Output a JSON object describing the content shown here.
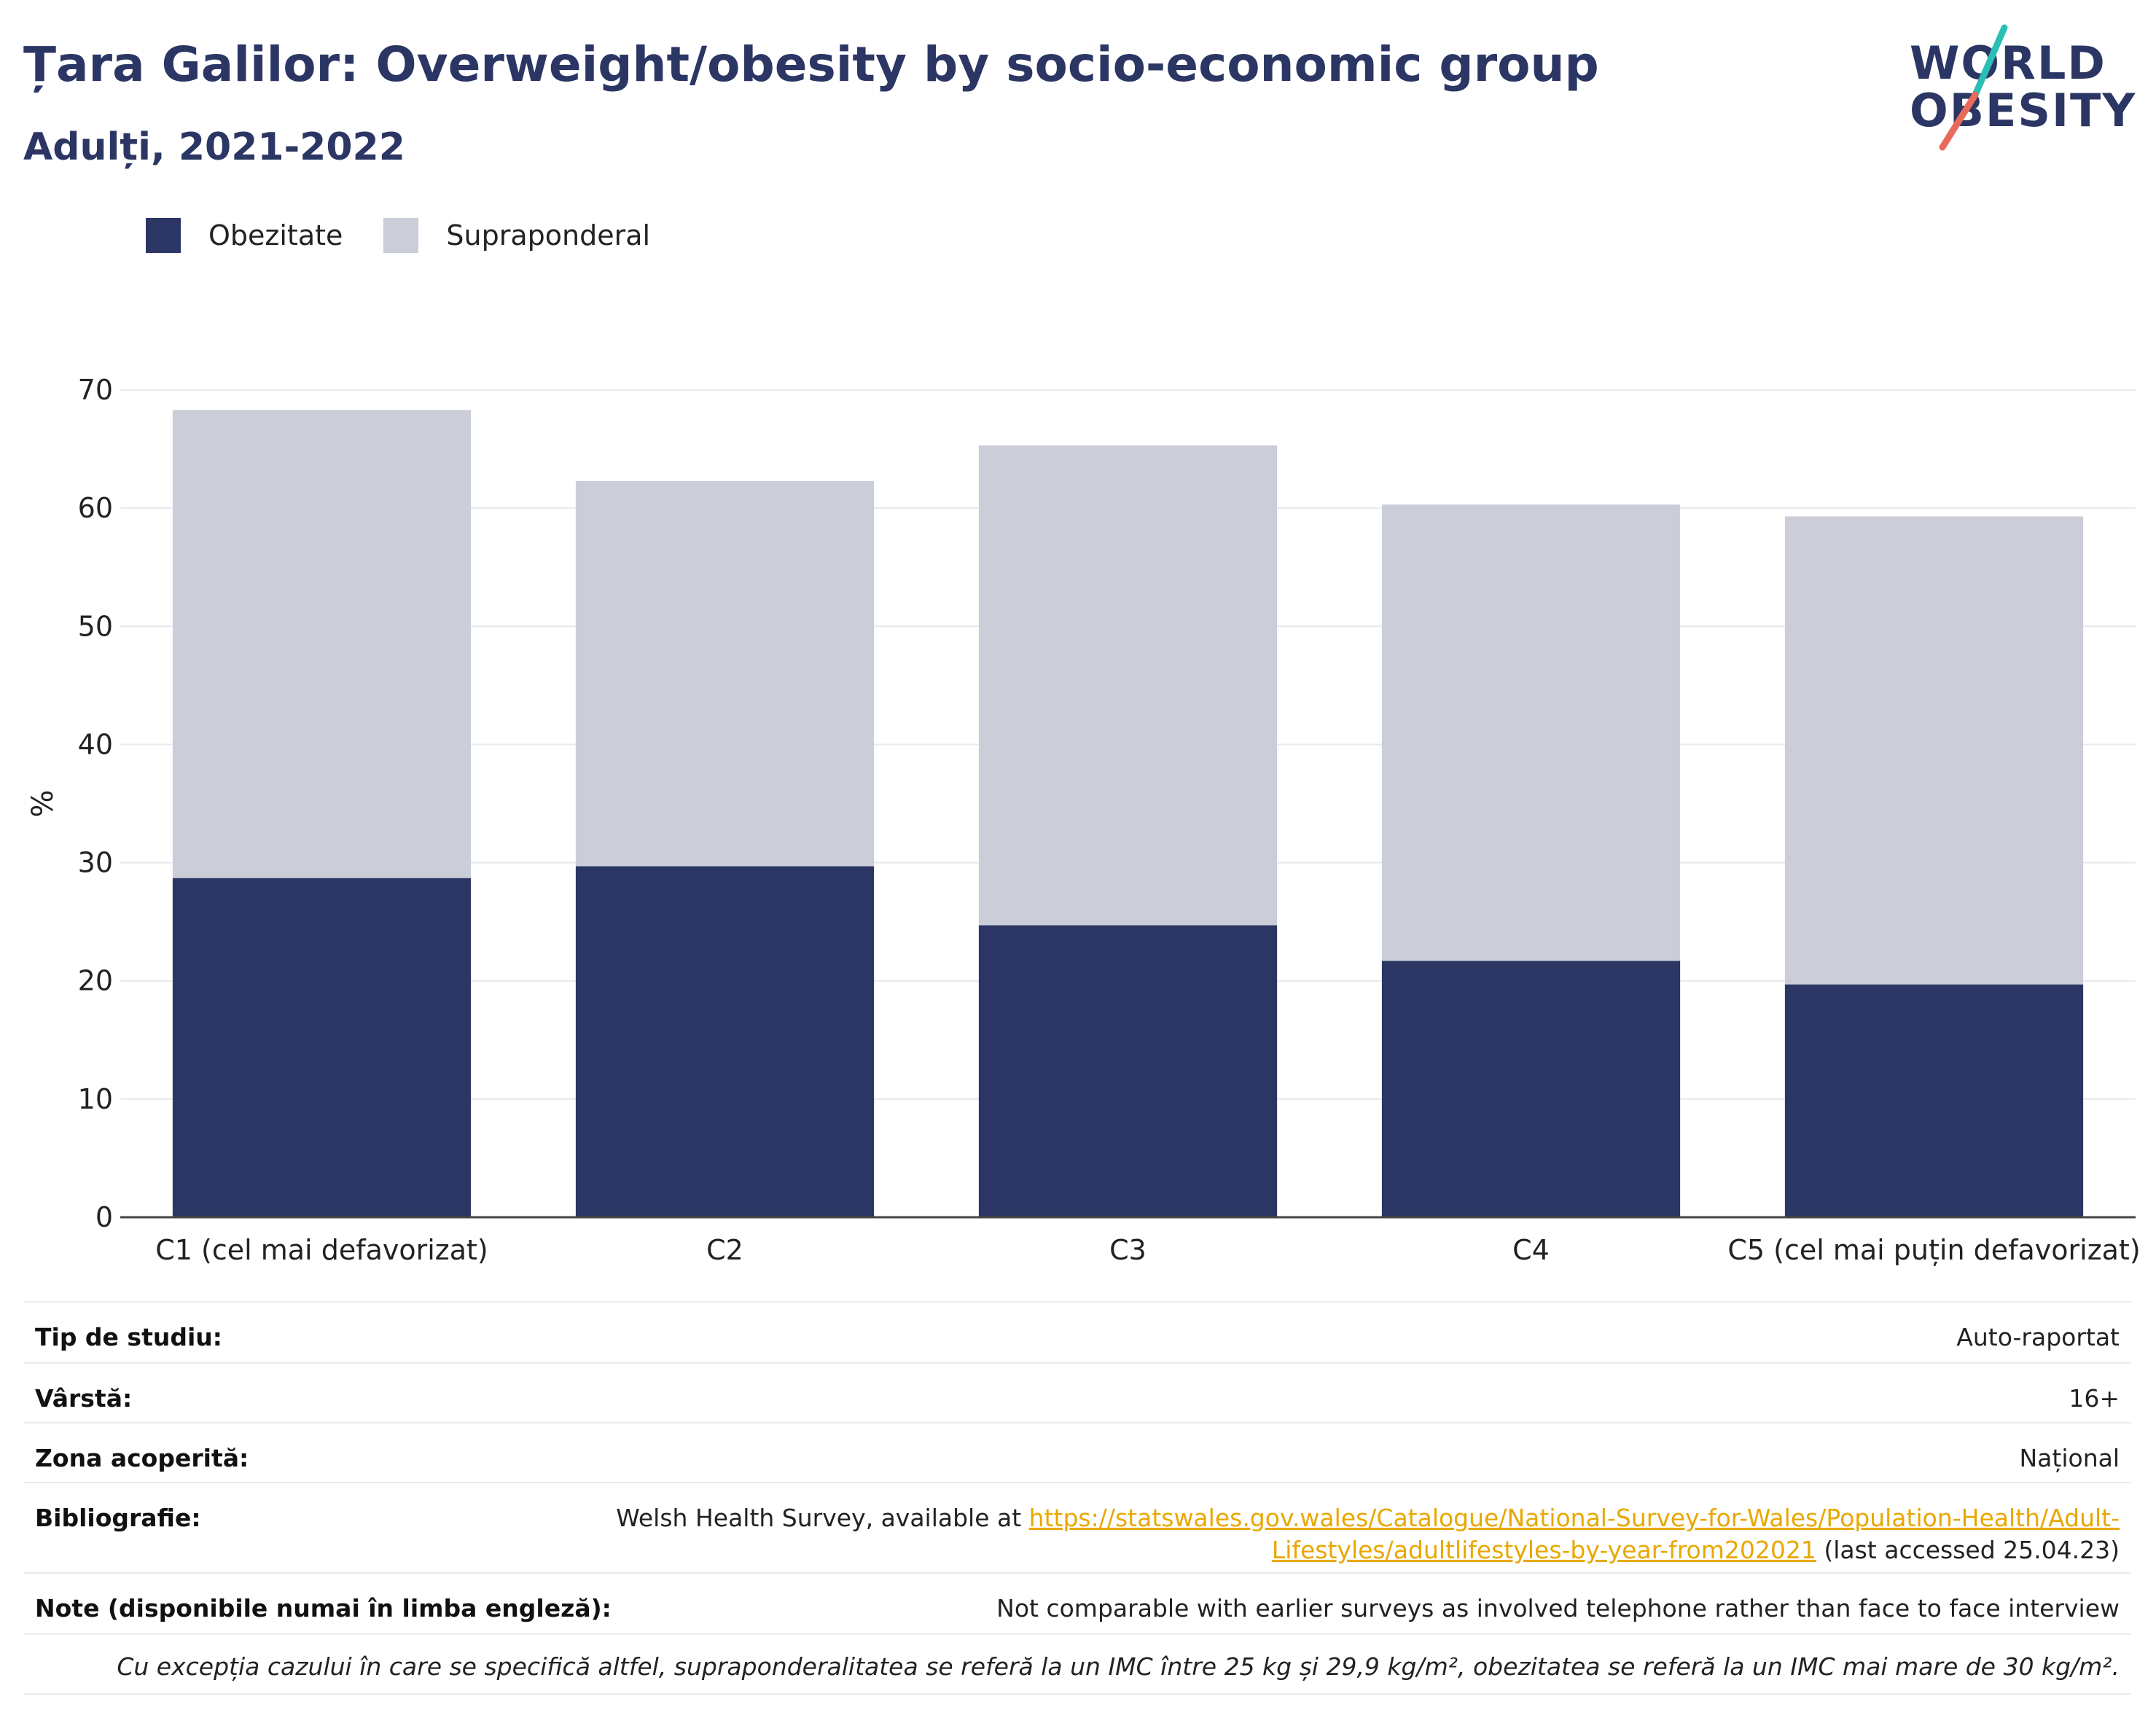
{
  "header": {
    "title": "Țara Galilor: Overweight/obesity by socio-economic group",
    "subtitle": "Adulți, 2021-2022"
  },
  "logo": {
    "line1": "WORLD",
    "line2": "OBESITY",
    "accent_teal": "#2bbfb4",
    "accent_coral": "#e96a5a"
  },
  "colors": {
    "obesity": "#2b3664",
    "overweight": "#cbcdd8",
    "title": "#2b3664",
    "link": "#e8a800"
  },
  "chart_data": {
    "type": "bar",
    "stacked": true,
    "categories": [
      "C1 (cel mai defavorizat)",
      "C2",
      "C3",
      "C4",
      "C5 (cel mai puțin defavorizat)"
    ],
    "series": [
      {
        "name": "Obezitate",
        "values": [
          28.7,
          29.7,
          24.7,
          21.7,
          19.7
        ]
      },
      {
        "name": "Supraponderal",
        "values": [
          39.6,
          32.6,
          40.6,
          38.6,
          39.6
        ]
      }
    ],
    "title": "",
    "xlabel": "",
    "ylabel": "%",
    "ylim": [
      0,
      70
    ],
    "yticks": [
      0,
      10,
      20,
      30,
      40,
      50,
      60,
      70
    ],
    "grid": true,
    "legend_position": "top-left"
  },
  "info": {
    "rows": [
      {
        "label": "Tip de studiu:",
        "value": "Auto-raportat"
      },
      {
        "label": "Vârstă:",
        "value": "16+"
      },
      {
        "label": "Zona acoperită:",
        "value": "Național"
      }
    ],
    "bibliography": {
      "label": "Bibliografie:",
      "prefix": "Welsh Health Survey, available at ",
      "link_line1": "https://statswales.gov.wales/Catalogue/National-Survey-for-Wales/Population-Health/Adult-",
      "link_line2": "Lifestyles/adultlifestyles-by-year-from202021",
      "suffix": " (last accessed 25.04.23)"
    },
    "notes": {
      "label": "Note (disponibile numai în limba engleză):",
      "value": "Not comparable with earlier surveys as involved telephone rather than face to face interview"
    },
    "footnote": "Cu excepția cazului în care se specifică altfel, supraponderalitatea se referă la un IMC între 25 kg și 29,9 kg/m², obezitatea se referă la un IMC mai mare de 30 kg/m²."
  }
}
